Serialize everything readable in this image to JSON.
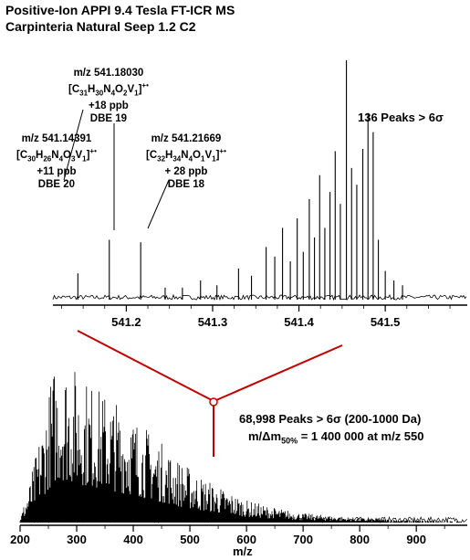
{
  "title_line1": "Positive-Ion APPI 9.4 Tesla FT-ICR MS",
  "title_line2": "Carpinteria Natural Seep 1.2 C2",
  "chart_data": [
    {
      "type": "line",
      "name": "zoom",
      "xlim": [
        541.115,
        541.595
      ],
      "xticks": [
        541.2,
        541.3,
        541.4,
        541.5
      ],
      "xticklabels": [
        "541.2",
        "541.3",
        "541.4",
        "541.5"
      ],
      "peak_summary": "136 Peaks > 6σ",
      "peaks": [
        {
          "mz": 541.1439,
          "height": 0.11
        },
        {
          "mz": 541.1803,
          "height": 0.25
        },
        {
          "mz": 541.2167,
          "height": 0.24
        },
        {
          "mz": 541.245,
          "height": 0.05
        },
        {
          "mz": 541.265,
          "height": 0.05
        },
        {
          "mz": 541.286,
          "height": 0.08
        },
        {
          "mz": 541.305,
          "height": 0.06
        },
        {
          "mz": 541.33,
          "height": 0.13
        },
        {
          "mz": 541.345,
          "height": 0.1
        },
        {
          "mz": 541.362,
          "height": 0.22
        },
        {
          "mz": 541.372,
          "height": 0.18
        },
        {
          "mz": 541.381,
          "height": 0.3
        },
        {
          "mz": 541.39,
          "height": 0.16
        },
        {
          "mz": 541.398,
          "height": 0.34
        },
        {
          "mz": 541.405,
          "height": 0.2
        },
        {
          "mz": 541.412,
          "height": 0.42
        },
        {
          "mz": 541.418,
          "height": 0.26
        },
        {
          "mz": 541.424,
          "height": 0.52
        },
        {
          "mz": 541.43,
          "height": 0.3
        },
        {
          "mz": 541.436,
          "height": 0.45
        },
        {
          "mz": 541.442,
          "height": 0.62
        },
        {
          "mz": 541.448,
          "height": 0.4
        },
        {
          "mz": 541.455,
          "height": 1.0
        },
        {
          "mz": 541.461,
          "height": 0.55
        },
        {
          "mz": 541.467,
          "height": 0.48
        },
        {
          "mz": 541.474,
          "height": 0.63
        },
        {
          "mz": 541.48,
          "height": 0.78
        },
        {
          "mz": 541.486,
          "height": 0.7
        },
        {
          "mz": 541.492,
          "height": 0.25
        },
        {
          "mz": 541.5,
          "height": 0.12
        },
        {
          "mz": 541.51,
          "height": 0.08
        },
        {
          "mz": 541.52,
          "height": 0.06
        }
      ],
      "annotations": [
        {
          "id": "left",
          "mz_text": "m/z 541.14391",
          "formula": [
            "C",
            "30",
            "H",
            "26",
            "N",
            "4",
            "O",
            "3",
            "V",
            "1"
          ],
          "radical": "+•",
          "error": "+11 ppb",
          "dbe": "DBE 20"
        },
        {
          "id": "mid",
          "mz_text": "m/z 541.18030",
          "formula": [
            "C",
            "31",
            "H",
            "30",
            "N",
            "4",
            "O",
            "2",
            "V",
            "1"
          ],
          "radical": "+•",
          "error": "+18 ppb",
          "dbe": "DBE 19"
        },
        {
          "id": "right",
          "mz_text": "m/z 541.21669",
          "formula": [
            "C",
            "32",
            "H",
            "34",
            "N",
            "4",
            "O",
            "1",
            "V",
            "1"
          ],
          "radical": "+•",
          "error": "+ 28 ppb",
          "dbe": "DBE 18"
        }
      ]
    },
    {
      "type": "line",
      "name": "broadband",
      "xlim": [
        200,
        990
      ],
      "xticks": [
        200,
        300,
        400,
        500,
        600,
        700,
        800,
        900
      ],
      "xticklabels": [
        "200",
        "300",
        "400",
        "500",
        "600",
        "700",
        "800",
        "900"
      ],
      "xlabel": "m/z",
      "zoom_marker_mz": 541,
      "peak_summary": "68,998 Peaks > 6σ (200-1000 Da)",
      "resolution_text_prefix": "m/Δm",
      "resolution_text_sub": "50%",
      "resolution_text_suffix": " = 1 400 000 at m/z 550",
      "envelope": [
        {
          "mz": 200,
          "height": 0.02
        },
        {
          "mz": 220,
          "height": 0.25
        },
        {
          "mz": 240,
          "height": 0.55
        },
        {
          "mz": 260,
          "height": 0.85
        },
        {
          "mz": 275,
          "height": 0.9
        },
        {
          "mz": 300,
          "height": 0.82
        },
        {
          "mz": 330,
          "height": 0.74
        },
        {
          "mz": 360,
          "height": 0.68
        },
        {
          "mz": 400,
          "height": 0.58
        },
        {
          "mz": 440,
          "height": 0.46
        },
        {
          "mz": 480,
          "height": 0.34
        },
        {
          "mz": 520,
          "height": 0.25
        },
        {
          "mz": 560,
          "height": 0.18
        },
        {
          "mz": 600,
          "height": 0.12
        },
        {
          "mz": 650,
          "height": 0.08
        },
        {
          "mz": 700,
          "height": 0.05
        },
        {
          "mz": 800,
          "height": 0.025
        },
        {
          "mz": 900,
          "height": 0.012
        },
        {
          "mz": 990,
          "height": 0.005
        }
      ]
    }
  ]
}
